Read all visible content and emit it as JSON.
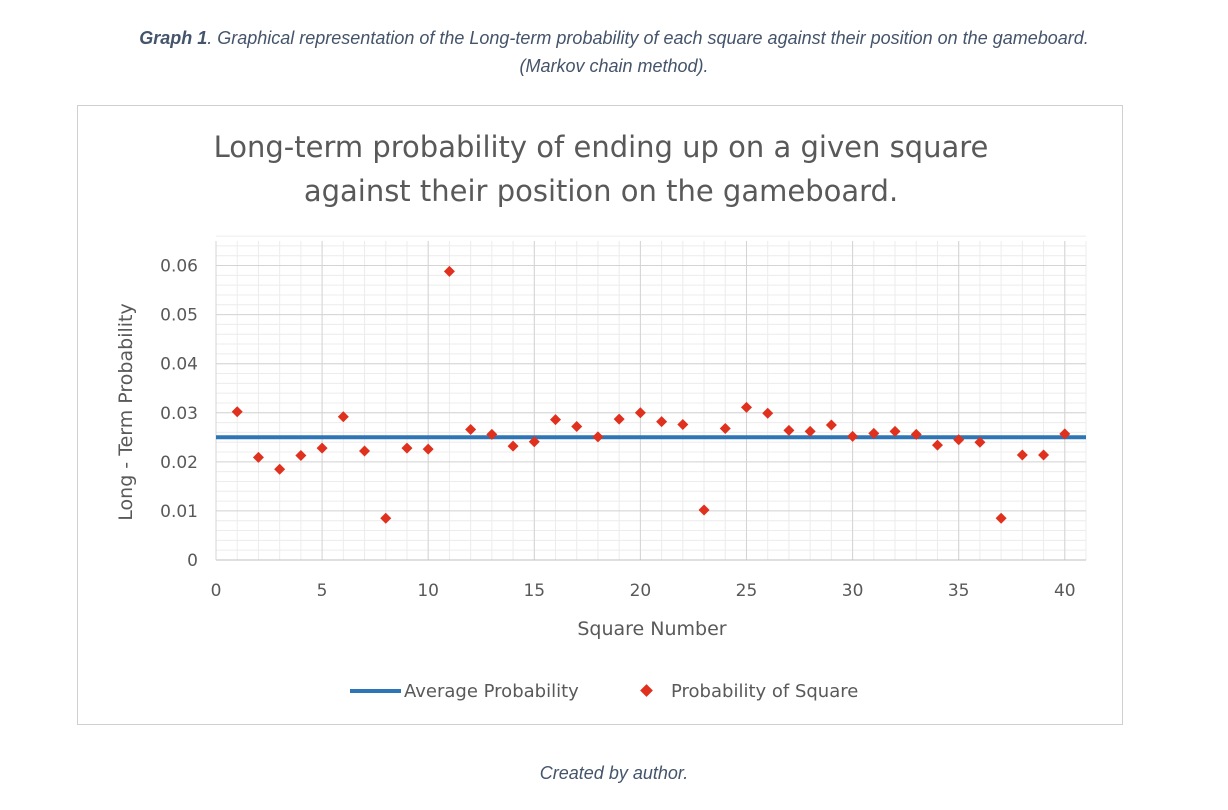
{
  "caption": {
    "label": "Graph 1",
    "text": ". Graphical representation of the Long-term probability of each square against their position on the gameboard.",
    "line2": "(Markov chain method)."
  },
  "footer": "Created by author.",
  "chart_data": {
    "type": "scatter",
    "title_line1": "Long-term probability of ending up on a given square",
    "title_line2": "against their position on the gameboard.",
    "xlabel": "Square Number",
    "ylabel": "Long - Term Probability",
    "xlim": [
      0,
      41
    ],
    "ylim": [
      0,
      0.065
    ],
    "x_ticks": [
      "0",
      "5",
      "10",
      "15",
      "20",
      "25",
      "30",
      "35",
      "40"
    ],
    "y_ticks": [
      "0",
      "0.01",
      "0.02",
      "0.03",
      "0.04",
      "0.05",
      "0.06"
    ],
    "grid": true,
    "legend_position": "bottom",
    "series": [
      {
        "name": "Average Probability",
        "type": "line",
        "color": "#2e75b6",
        "x": [
          0,
          41
        ],
        "y": [
          0.025,
          0.025
        ]
      },
      {
        "name": "Probability of Square",
        "type": "scatter",
        "color": "#e0301e",
        "marker": "diamond",
        "x": [
          1,
          2,
          3,
          4,
          5,
          6,
          7,
          8,
          9,
          10,
          11,
          12,
          13,
          14,
          15,
          16,
          17,
          18,
          19,
          20,
          21,
          22,
          23,
          24,
          25,
          26,
          27,
          28,
          29,
          30,
          31,
          32,
          33,
          34,
          35,
          36,
          37,
          38,
          39,
          40
        ],
        "y": [
          0.0302,
          0.0209,
          0.0185,
          0.0213,
          0.0228,
          0.0292,
          0.0222,
          0.0085,
          0.0228,
          0.0226,
          0.0588,
          0.0266,
          0.0256,
          0.0232,
          0.0241,
          0.0286,
          0.0272,
          0.0251,
          0.0287,
          0.03,
          0.0282,
          0.0276,
          0.0102,
          0.0268,
          0.0311,
          0.0299,
          0.0264,
          0.0262,
          0.0275,
          0.0252,
          0.0258,
          0.0262,
          0.0256,
          0.0234,
          0.0245,
          0.024,
          0.0085,
          0.0214,
          0.0214,
          0.0257
        ]
      }
    ]
  }
}
